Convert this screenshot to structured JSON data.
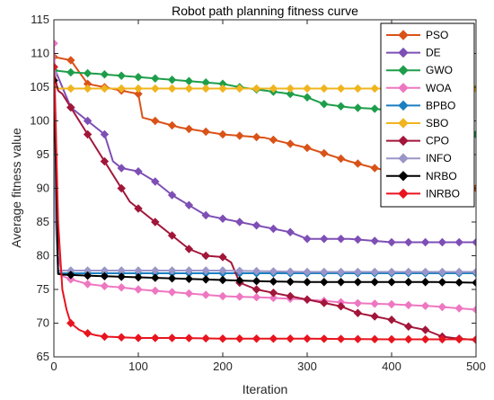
{
  "chart_data": {
    "type": "line",
    "title": "Robot path planning fitness curve",
    "xlabel": "Iteration",
    "ylabel": "Average fitness value",
    "xlim": [
      0,
      500
    ],
    "ylim": [
      65,
      115
    ],
    "xticks": [
      "0",
      "100",
      "200",
      "300",
      "400",
      "500"
    ],
    "yticks": [
      "65",
      "70",
      "75",
      "80",
      "85",
      "90",
      "95",
      "100",
      "105",
      "110",
      "115"
    ],
    "grid": false,
    "legend_position": "top-right",
    "marker": "diamond",
    "series": [
      {
        "name": "PSO",
        "color": "#D95319",
        "x": [
          0,
          20,
          40,
          60,
          80,
          100,
          105,
          120,
          150,
          200,
          250,
          300,
          350,
          380,
          400,
          450,
          500
        ],
        "y": [
          109.5,
          109,
          105.5,
          105,
          104.5,
          104,
          100.5,
          100,
          99,
          98,
          97.5,
          96,
          94,
          93,
          92.5,
          91.5,
          90
        ]
      },
      {
        "name": "DE",
        "color": "#7E4FB5",
        "x": [
          0,
          10,
          20,
          40,
          60,
          70,
          80,
          100,
          120,
          140,
          160,
          180,
          200,
          220,
          240,
          260,
          280,
          300,
          350,
          400,
          450,
          500
        ],
        "y": [
          108,
          105,
          102,
          100,
          98,
          94,
          93,
          92.5,
          91,
          89,
          87.5,
          86,
          85.5,
          85,
          84.5,
          84,
          83.5,
          82.5,
          82.5,
          82,
          82,
          82
        ]
      },
      {
        "name": "GWO",
        "color": "#1E9E4A",
        "x": [
          0,
          20,
          50,
          100,
          150,
          200,
          220,
          250,
          280,
          300,
          320,
          350,
          380,
          400,
          420,
          450,
          500
        ],
        "y": [
          107.5,
          107.2,
          107,
          106.5,
          106,
          105.5,
          105,
          104.5,
          104,
          103.5,
          102.5,
          102,
          101.8,
          101.5,
          101.3,
          101,
          98
        ]
      },
      {
        "name": "WOA",
        "color": "#EE77C1",
        "x": [
          0,
          1,
          5,
          10,
          20,
          40,
          60,
          80,
          100,
          150,
          200,
          250,
          300,
          350,
          400,
          450,
          500
        ],
        "y": [
          111.5,
          108,
          80,
          77,
          76.5,
          75.8,
          75.5,
          75.3,
          75,
          74.5,
          74,
          73.8,
          73.5,
          73,
          72.8,
          72.5,
          72
        ]
      },
      {
        "name": "BPBO",
        "color": "#1B7FC1",
        "x": [
          0,
          2,
          5,
          10,
          100,
          200,
          300,
          400,
          500
        ],
        "y": [
          107,
          90,
          77.5,
          77.4,
          77.4,
          77.4,
          77.4,
          77.4,
          77.4
        ]
      },
      {
        "name": "SBO",
        "color": "#F0B41E",
        "x": [
          0,
          5,
          10,
          50,
          100,
          200,
          300,
          400,
          500
        ],
        "y": [
          105,
          104.8,
          104.8,
          104.8,
          104.8,
          104.8,
          104.8,
          104.8,
          104.8
        ]
      },
      {
        "name": "CPO",
        "color": "#A2163A",
        "x": [
          0,
          2,
          5,
          10,
          20,
          30,
          40,
          50,
          60,
          70,
          80,
          90,
          100,
          110,
          120,
          140,
          160,
          180,
          200,
          210,
          220,
          240,
          260,
          280,
          300,
          320,
          340,
          360,
          380,
          400,
          420,
          440,
          460,
          480,
          500
        ],
        "y": [
          108,
          106,
          104.5,
          104,
          102,
          100,
          98,
          96,
          94,
          92,
          90,
          88,
          87,
          86,
          85,
          83,
          81,
          80,
          79.8,
          79,
          76,
          75,
          74.5,
          74,
          73.5,
          73,
          72.5,
          71.5,
          71,
          70.5,
          69.5,
          69,
          68,
          67.7,
          67.5
        ]
      },
      {
        "name": "INFO",
        "color": "#9A96C8",
        "x": [
          0,
          2,
          5,
          10,
          100,
          200,
          300,
          400,
          500
        ],
        "y": [
          107,
          85,
          77.8,
          77.8,
          77.8,
          77.8,
          77.6,
          77.6,
          77.6
        ]
      },
      {
        "name": "NRBO",
        "color": "#000000",
        "x": [
          0,
          2,
          5,
          10,
          50,
          100,
          150,
          200,
          250,
          300,
          350,
          400,
          450,
          500
        ],
        "y": [
          106,
          95,
          77.3,
          77.2,
          77,
          76.8,
          76.6,
          76.4,
          76.2,
          76.1,
          76.1,
          76.1,
          76.1,
          76
        ]
      },
      {
        "name": "INRBO",
        "color": "#E8141E",
        "x": [
          0,
          2,
          5,
          10,
          15,
          20,
          30,
          40,
          50,
          60,
          80,
          100,
          150,
          200,
          250,
          300,
          400,
          500
        ],
        "y": [
          108,
          100,
          85,
          75,
          72,
          70,
          69,
          68.5,
          68.2,
          68,
          67.9,
          67.8,
          67.8,
          67.7,
          67.7,
          67.7,
          67.6,
          67.6
        ]
      }
    ]
  }
}
